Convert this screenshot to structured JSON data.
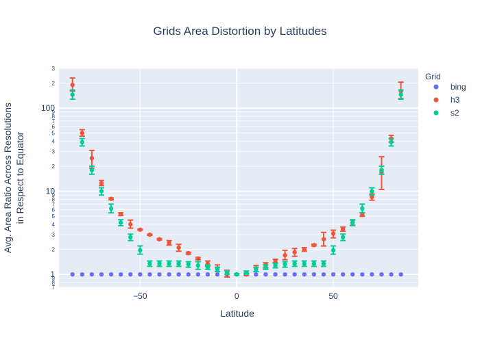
{
  "chart_data": {
    "type": "scatter",
    "title": "Grids Area Distortion by Latitudes",
    "xlabel": "Latitude",
    "ylabel_lines": [
      "Avg. Area Ratio Across Resolutions",
      "in Respect to Equator"
    ],
    "y_scale": "log",
    "xlim": [
      -92,
      94
    ],
    "ylim": [
      0.7,
      300
    ],
    "x_ticks": [
      -50,
      0,
      50
    ],
    "x_tick_labels": [
      "−50",
      "0",
      "50"
    ],
    "y_major_ticks": [
      1,
      10,
      100
    ],
    "y_major_labels": [
      "1",
      "10",
      "100"
    ],
    "y_minor_ticks": [
      0.7,
      0.8,
      0.9,
      2,
      3,
      4,
      5,
      6,
      7,
      8,
      9,
      20,
      30,
      40,
      50,
      60,
      70,
      80,
      90,
      200,
      300
    ],
    "y_minor_labels": [
      "7",
      "8",
      "9",
      "2",
      "3",
      "4",
      "5",
      "6",
      "7",
      "8",
      "9",
      "2",
      "3",
      "4",
      "5",
      "6",
      "7",
      "8",
      "9",
      "2",
      "3"
    ],
    "grid": true,
    "legend": {
      "title": "Grid",
      "placement": "right"
    },
    "series": [
      {
        "name": "bing",
        "color": "#636efa",
        "points": [
          {
            "x": -85,
            "y": 1
          },
          {
            "x": -80,
            "y": 1
          },
          {
            "x": -75,
            "y": 1
          },
          {
            "x": -70,
            "y": 1
          },
          {
            "x": -65,
            "y": 1
          },
          {
            "x": -60,
            "y": 1
          },
          {
            "x": -55,
            "y": 1
          },
          {
            "x": -50,
            "y": 1
          },
          {
            "x": -45,
            "y": 1
          },
          {
            "x": -40,
            "y": 1
          },
          {
            "x": -35,
            "y": 1
          },
          {
            "x": -30,
            "y": 1
          },
          {
            "x": -25,
            "y": 1
          },
          {
            "x": -20,
            "y": 1
          },
          {
            "x": -15,
            "y": 1
          },
          {
            "x": -10,
            "y": 1
          },
          {
            "x": -5,
            "y": 1
          },
          {
            "x": 0,
            "y": 1
          },
          {
            "x": 5,
            "y": 1
          },
          {
            "x": 10,
            "y": 1
          },
          {
            "x": 15,
            "y": 1
          },
          {
            "x": 20,
            "y": 1
          },
          {
            "x": 25,
            "y": 1
          },
          {
            "x": 30,
            "y": 1
          },
          {
            "x": 35,
            "y": 1
          },
          {
            "x": 40,
            "y": 1
          },
          {
            "x": 45,
            "y": 1
          },
          {
            "x": 50,
            "y": 1
          },
          {
            "x": 55,
            "y": 1
          },
          {
            "x": 60,
            "y": 1
          },
          {
            "x": 65,
            "y": 1
          },
          {
            "x": 70,
            "y": 1
          },
          {
            "x": 75,
            "y": 1
          },
          {
            "x": 80,
            "y": 1
          },
          {
            "x": 85,
            "y": 1
          }
        ]
      },
      {
        "name": "h3",
        "color": "#ef553b",
        "points": [
          {
            "x": -85,
            "y": 190,
            "lo": 160,
            "hi": 230
          },
          {
            "x": -80,
            "y": 50,
            "lo": 46,
            "hi": 55
          },
          {
            "x": -75,
            "y": 25,
            "lo": 19,
            "hi": 31
          },
          {
            "x": -70,
            "y": 12.5,
            "lo": 11.7,
            "hi": 13.5
          },
          {
            "x": -65,
            "y": 8.1,
            "lo": 7.9,
            "hi": 8.3
          },
          {
            "x": -60,
            "y": 5.3,
            "lo": 5.1,
            "hi": 5.5
          },
          {
            "x": -55,
            "y": 4.0,
            "lo": 3.6,
            "hi": 4.5
          },
          {
            "x": -50,
            "y": 3.45,
            "lo": 3.4,
            "hi": 3.5
          },
          {
            "x": -45,
            "y": 3.0,
            "lo": 2.95,
            "hi": 3.05
          },
          {
            "x": -40,
            "y": 2.65,
            "lo": 2.6,
            "hi": 2.7
          },
          {
            "x": -35,
            "y": 2.4,
            "lo": 2.25,
            "hi": 2.55
          },
          {
            "x": -30,
            "y": 2.1,
            "lo": 1.9,
            "hi": 2.3
          },
          {
            "x": -25,
            "y": 1.8,
            "lo": 1.75,
            "hi": 1.85
          },
          {
            "x": -20,
            "y": 1.55,
            "lo": 1.5,
            "hi": 1.6
          },
          {
            "x": -15,
            "y": 1.35,
            "lo": 1.25,
            "hi": 1.45
          },
          {
            "x": -10,
            "y": 1.18,
            "lo": 1.08,
            "hi": 1.3
          },
          {
            "x": -5,
            "y": 1.02,
            "lo": 0.93,
            "hi": 1.12
          },
          {
            "x": 5,
            "y": 1.0,
            "lo": 0.97,
            "hi": 1.03
          },
          {
            "x": 10,
            "y": 1.18,
            "lo": 1.08,
            "hi": 1.28
          },
          {
            "x": 15,
            "y": 1.3,
            "lo": 1.2,
            "hi": 1.38
          },
          {
            "x": 20,
            "y": 1.45,
            "lo": 1.38,
            "hi": 1.52
          },
          {
            "x": 25,
            "y": 1.7,
            "lo": 1.5,
            "hi": 1.95
          },
          {
            "x": 30,
            "y": 1.85,
            "lo": 1.65,
            "hi": 2.05
          },
          {
            "x": 35,
            "y": 2.0,
            "lo": 1.9,
            "hi": 2.1
          },
          {
            "x": 40,
            "y": 2.25,
            "lo": 2.2,
            "hi": 2.3
          },
          {
            "x": 45,
            "y": 2.65,
            "lo": 2.2,
            "hi": 3.2
          },
          {
            "x": 50,
            "y": 3.1,
            "lo": 2.75,
            "hi": 3.4
          },
          {
            "x": 55,
            "y": 3.5,
            "lo": 3.3,
            "hi": 3.7
          },
          {
            "x": 60,
            "y": 4.2,
            "lo": 3.9,
            "hi": 4.5
          },
          {
            "x": 65,
            "y": 5.2,
            "lo": 5.0,
            "hi": 5.5
          },
          {
            "x": 70,
            "y": 8.5,
            "lo": 7.8,
            "hi": 9.3
          },
          {
            "x": 75,
            "y": 17,
            "lo": 10.5,
            "hi": 26
          },
          {
            "x": 80,
            "y": 43,
            "lo": 39,
            "hi": 47
          },
          {
            "x": 85,
            "y": 160,
            "lo": 130,
            "hi": 205
          }
        ]
      },
      {
        "name": "s2",
        "color": "#00cc96",
        "points": [
          {
            "x": -85,
            "y": 145,
            "lo": 128,
            "hi": 165
          },
          {
            "x": -80,
            "y": 39,
            "lo": 35,
            "hi": 43
          },
          {
            "x": -75,
            "y": 18,
            "lo": 16,
            "hi": 20
          },
          {
            "x": -70,
            "y": 10,
            "lo": 9,
            "hi": 11
          },
          {
            "x": -65,
            "y": 6.2,
            "lo": 5.5,
            "hi": 7
          },
          {
            "x": -60,
            "y": 4.2,
            "lo": 3.85,
            "hi": 4.55
          },
          {
            "x": -55,
            "y": 2.8,
            "lo": 2.55,
            "hi": 3.05
          },
          {
            "x": -50,
            "y": 1.95,
            "lo": 1.75,
            "hi": 2.2
          },
          {
            "x": -45,
            "y": 1.35,
            "lo": 1.25,
            "hi": 1.45
          },
          {
            "x": -40,
            "y": 1.35,
            "lo": 1.25,
            "hi": 1.45
          },
          {
            "x": -35,
            "y": 1.35,
            "lo": 1.25,
            "hi": 1.45
          },
          {
            "x": -30,
            "y": 1.35,
            "lo": 1.25,
            "hi": 1.45
          },
          {
            "x": -25,
            "y": 1.32,
            "lo": 1.22,
            "hi": 1.42
          },
          {
            "x": -20,
            "y": 1.28,
            "lo": 1.15,
            "hi": 1.42
          },
          {
            "x": -15,
            "y": 1.22,
            "lo": 1.15,
            "hi": 1.3
          },
          {
            "x": -10,
            "y": 1.15,
            "lo": 1.08,
            "hi": 1.22
          },
          {
            "x": -5,
            "y": 1.05,
            "lo": 1.0,
            "hi": 1.1
          },
          {
            "x": 0,
            "y": 1.0,
            "lo": 0.98,
            "hi": 1.02
          },
          {
            "x": 5,
            "y": 1.05,
            "lo": 1.0,
            "hi": 1.1
          },
          {
            "x": 10,
            "y": 1.15,
            "lo": 1.08,
            "hi": 1.22
          },
          {
            "x": 15,
            "y": 1.22,
            "lo": 1.15,
            "hi": 1.3
          },
          {
            "x": 20,
            "y": 1.28,
            "lo": 1.2,
            "hi": 1.36
          },
          {
            "x": 25,
            "y": 1.32,
            "lo": 1.22,
            "hi": 1.42
          },
          {
            "x": 30,
            "y": 1.35,
            "lo": 1.25,
            "hi": 1.45
          },
          {
            "x": 35,
            "y": 1.35,
            "lo": 1.25,
            "hi": 1.45
          },
          {
            "x": 40,
            "y": 1.35,
            "lo": 1.25,
            "hi": 1.45
          },
          {
            "x": 45,
            "y": 1.35,
            "lo": 1.25,
            "hi": 1.45
          },
          {
            "x": 50,
            "y": 1.95,
            "lo": 1.75,
            "hi": 2.2
          },
          {
            "x": 55,
            "y": 2.8,
            "lo": 2.55,
            "hi": 3.05
          },
          {
            "x": 60,
            "y": 4.2,
            "lo": 3.85,
            "hi": 4.55
          },
          {
            "x": 65,
            "y": 6.2,
            "lo": 5.5,
            "hi": 7
          },
          {
            "x": 70,
            "y": 10,
            "lo": 9,
            "hi": 11
          },
          {
            "x": 75,
            "y": 18,
            "lo": 16,
            "hi": 20
          },
          {
            "x": 80,
            "y": 39,
            "lo": 35,
            "hi": 43
          },
          {
            "x": 85,
            "y": 145,
            "lo": 128,
            "hi": 165
          }
        ]
      }
    ]
  }
}
